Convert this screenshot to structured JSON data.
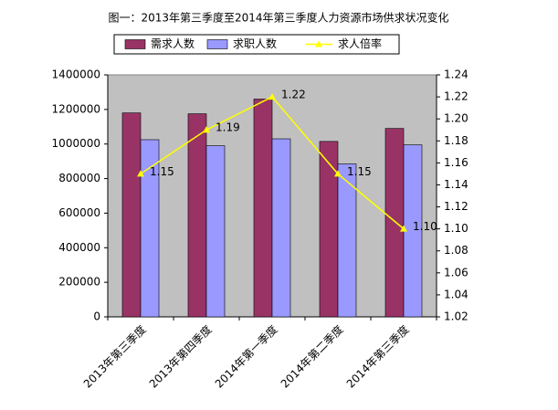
{
  "chart_data": {
    "type": "bar",
    "title": "图一：2013年第三季度至2014年第三季度人力资源市场供求状况变化",
    "categories": [
      "2013年第三季度",
      "2013年第四季度",
      "2014年第一季度",
      "2014年第二季度",
      "2014年第三季度"
    ],
    "series": [
      {
        "name": "需求人数",
        "color": "#993366",
        "values": [
          1180000,
          1175000,
          1260000,
          1015000,
          1090000
        ]
      },
      {
        "name": "求职人数",
        "color": "#9999ff",
        "values": [
          1025000,
          990000,
          1030000,
          885000,
          995000
        ]
      },
      {
        "name": "求人倍率",
        "color": "#ffff00",
        "type": "line",
        "axis": "y2",
        "values": [
          1.15,
          1.19,
          1.22,
          1.15,
          1.1
        ],
        "value_labels": [
          "1.15",
          "1.19",
          "1.22",
          "1.15",
          "1.10"
        ]
      }
    ],
    "ylim": [
      0,
      1400000
    ],
    "yticks": [
      0,
      200000,
      400000,
      600000,
      800000,
      1000000,
      1200000,
      1400000
    ],
    "y2lim": [
      1.02,
      1.24
    ],
    "y2ticks": [
      1.02,
      1.04,
      1.06,
      1.08,
      {
        "value": 1.1,
        "label": "1.10"
      },
      1.12,
      1.14,
      1.16,
      1.18,
      {
        "value": 1.2,
        "label": "1.20"
      },
      1.22,
      1.24
    ],
    "plot_background": "#c0c0c0"
  }
}
